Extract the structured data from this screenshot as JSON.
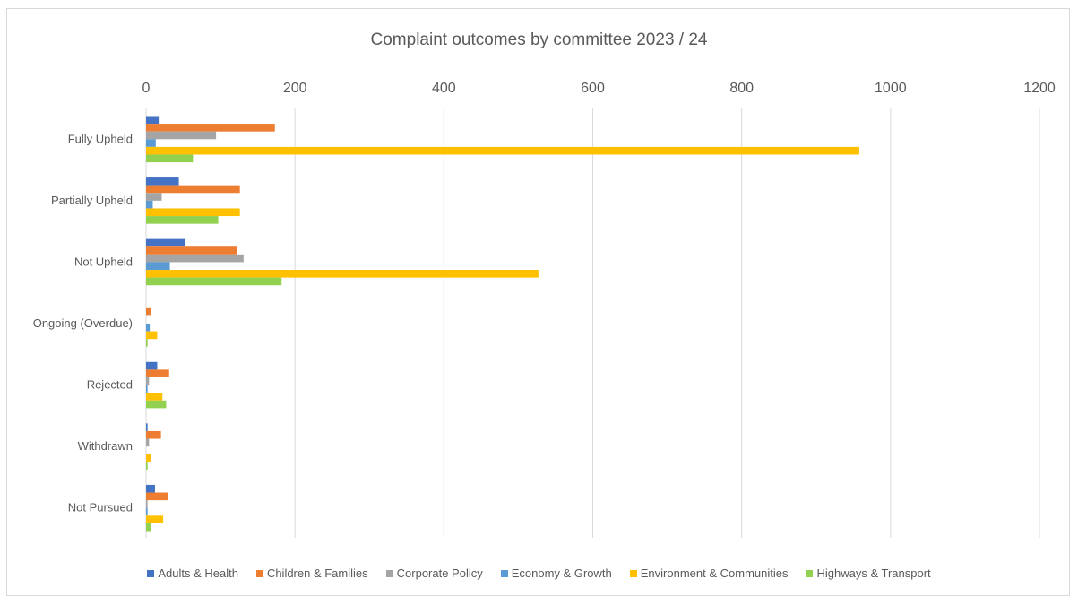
{
  "chart_data": {
    "type": "bar",
    "orientation": "horizontal",
    "title": "Complaint outcomes by committee 2023 / 24",
    "categories": [
      "Fully Upheld",
      "Partially Upheld",
      "Not Upheld",
      "Ongoing (Overdue)",
      "Rejected",
      "Withdrawn",
      "Not Pursued"
    ],
    "xlim": [
      0,
      1200
    ],
    "x_ticks": [
      0,
      200,
      400,
      600,
      800,
      1000,
      1200
    ],
    "x_axis_position": "top",
    "grid": true,
    "legend_position": "bottom",
    "series": [
      {
        "name": "Adults & Health",
        "color": "#4472c4",
        "values": [
          17,
          44,
          53,
          0,
          15,
          2,
          12
        ]
      },
      {
        "name": "Children & Families",
        "color": "#ed7d31",
        "values": [
          173,
          126,
          122,
          7,
          31,
          20,
          30
        ]
      },
      {
        "name": "Corporate Policy",
        "color": "#a5a5a5",
        "values": [
          94,
          21,
          131,
          0,
          4,
          4,
          2
        ]
      },
      {
        "name": "Economy & Growth",
        "color": "#5b9bd5",
        "values": [
          13,
          9,
          32,
          5,
          2,
          0,
          2
        ]
      },
      {
        "name": "Environment & Communities",
        "color": "#ffc000",
        "values": [
          958,
          126,
          527,
          15,
          22,
          6,
          23
        ]
      },
      {
        "name": "Highways & Transport",
        "color": "#92d050",
        "values": [
          63,
          97,
          182,
          2,
          27,
          2,
          6
        ]
      }
    ]
  }
}
